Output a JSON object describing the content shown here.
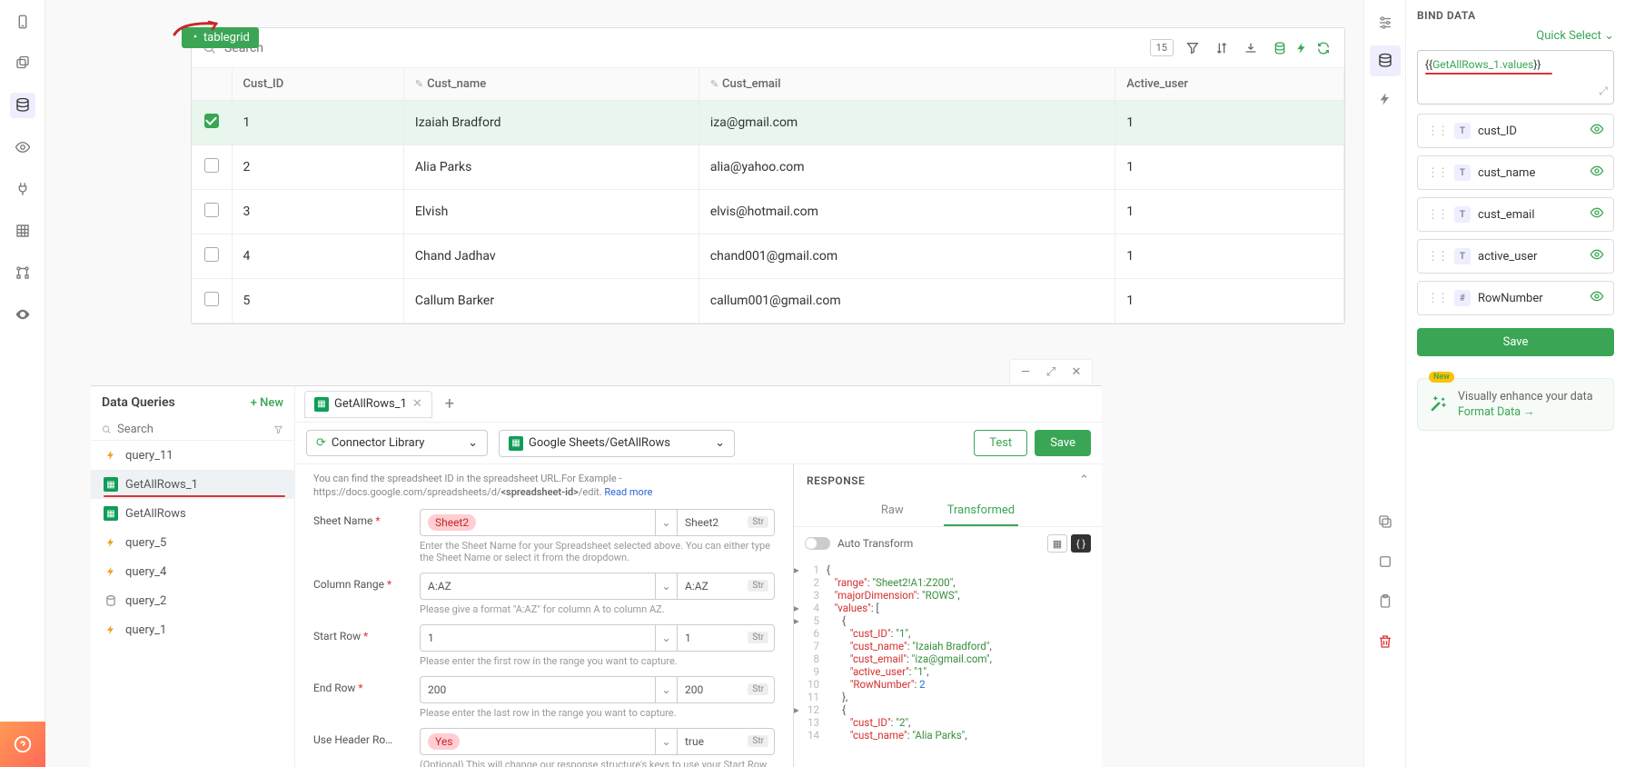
{
  "tablegrid": {
    "badge_label": "tablegrid",
    "search_placeholder": "Search",
    "row_count": "15",
    "columns": [
      "Cust_ID",
      "Cust_name",
      "Cust_email",
      "Active_user"
    ],
    "col_editable": [
      false,
      true,
      true,
      false
    ],
    "rows": [
      {
        "id": "1",
        "name": "Izaiah Bradford",
        "email": "iza@gmail.com",
        "active": "1",
        "selected": true
      },
      {
        "id": "2",
        "name": "Alia Parks",
        "email": "alia@yahoo.com",
        "active": "1",
        "selected": false
      },
      {
        "id": "3",
        "name": "Elvish",
        "email": "elvis@hotmail.com",
        "active": "1",
        "selected": false
      },
      {
        "id": "4",
        "name": "Chand Jadhav",
        "email": "chand001@gmail.com",
        "active": "1",
        "selected": false
      },
      {
        "id": "5",
        "name": "Callum Barker",
        "email": "callum001@gmail.com",
        "active": "1",
        "selected": false
      }
    ]
  },
  "data_queries": {
    "title": "Data Queries",
    "new_label": "+ New",
    "search_placeholder": "Search",
    "items": [
      {
        "name": "query_11",
        "icon": "bolt"
      },
      {
        "name": "GetAllRows_1",
        "icon": "gs",
        "active": true
      },
      {
        "name": "GetAllRows",
        "icon": "gs"
      },
      {
        "name": "query_5",
        "icon": "bolt"
      },
      {
        "name": "query_4",
        "icon": "bolt"
      },
      {
        "name": "query_2",
        "icon": "db"
      },
      {
        "name": "query_1",
        "icon": "bolt"
      }
    ]
  },
  "editor": {
    "tab_name": "GetAllRows_1",
    "connector_label": "Connector Library",
    "action_label": "Google Sheets/GetAllRows",
    "test_label": "Test",
    "save_label": "Save",
    "hint_pre": "You can find the spreadsheet ID in the spreadsheet URL.For Example - https://docs.google.com/spreadsheets/d/",
    "hint_bold": "<spreadsheet-id>",
    "hint_post": "/edit. ",
    "hint_link": "Read more",
    "fields": {
      "sheet_name": {
        "label": "Sheet Name",
        "chip": "Sheet2",
        "value": "Sheet2",
        "required": true,
        "help": "Enter the Sheet Name for your Spreadsheet selected above. You can either type the Sheet Name or select it from the dropdown."
      },
      "column_range": {
        "label": "Column Range",
        "chip": "A:AZ",
        "value": "A:AZ",
        "required": true,
        "help": "Please give a format \"A:AZ\" for column A to column AZ."
      },
      "start_row": {
        "label": "Start Row",
        "chip": "1",
        "value": "1",
        "required": true,
        "help": "Please enter the first row in the range you want to capture."
      },
      "end_row": {
        "label": "End Row",
        "chip": "200",
        "value": "200",
        "required": true,
        "help": "Please enter the last row in the range you want to capture."
      },
      "header": {
        "label": "Use Header Ro…",
        "chip": "Yes",
        "value": "true",
        "required": false,
        "help": "(Optional) This will change our response structure's keys to use your Start Row as a Header, and therefore as"
      }
    }
  },
  "response": {
    "title": "RESPONSE",
    "tabs": {
      "raw": "Raw",
      "transformed": "Transformed"
    },
    "auto_transform": "Auto Transform",
    "json_lines": [
      {
        "n": 1,
        "fold": "▸",
        "txt": "{"
      },
      {
        "n": 2,
        "txt": "   \"range\": \"Sheet2!A1:Z200\","
      },
      {
        "n": 3,
        "txt": "   \"majorDimension\": \"ROWS\","
      },
      {
        "n": 4,
        "fold": "▸",
        "txt": "   \"values\": ["
      },
      {
        "n": 5,
        "fold": "▸",
        "txt": "      {"
      },
      {
        "n": 6,
        "txt": "         \"cust_ID\": \"1\","
      },
      {
        "n": 7,
        "txt": "         \"cust_name\": \"Izaiah Bradford\","
      },
      {
        "n": 8,
        "txt": "         \"cust_email\": \"iza@gmail.com\","
      },
      {
        "n": 9,
        "txt": "         \"active_user\": \"1\","
      },
      {
        "n": 10,
        "txt": "         \"RowNumber\": 2"
      },
      {
        "n": 11,
        "txt": "      },"
      },
      {
        "n": 12,
        "fold": "▸",
        "txt": "      {"
      },
      {
        "n": 13,
        "txt": "         \"cust_ID\": \"2\","
      },
      {
        "n": 14,
        "txt": "         \"cust_name\": \"Alia Parks\","
      }
    ]
  },
  "bind": {
    "title": "BIND DATA",
    "quick_select": "Quick Select",
    "expr_pre": "{{",
    "expr_mid": "GetAllRows_1.values",
    "expr_post": "}}",
    "fields": [
      {
        "type": "T",
        "name": "cust_ID"
      },
      {
        "type": "T",
        "name": "cust_name"
      },
      {
        "type": "T",
        "name": "cust_email"
      },
      {
        "type": "T",
        "name": "active_user"
      },
      {
        "type": "#",
        "name": "RowNumber"
      }
    ],
    "save_label": "Save",
    "new_badge": "New",
    "format_line1": "Visually enhance your data",
    "format_line2": "Format Data →"
  },
  "colors": {
    "accent": "#3aa655",
    "danger": "#d33",
    "chip_bg": "#ffcdd2",
    "chip_fg": "#c62828"
  }
}
